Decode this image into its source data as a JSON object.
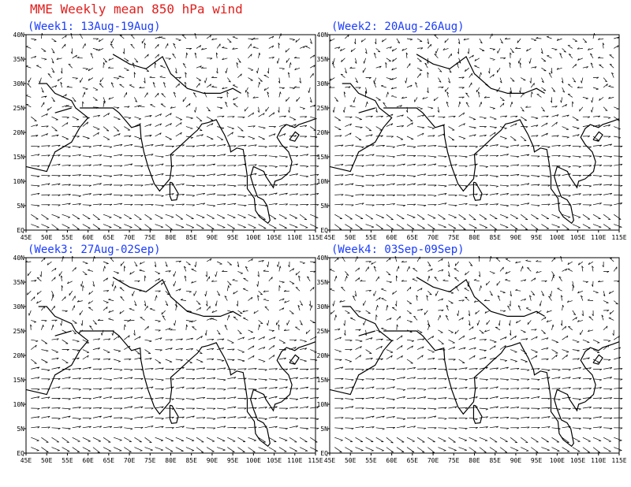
{
  "title": "MME Weekly mean 850 hPa wind",
  "map": {
    "xlim": [
      45,
      115
    ],
    "ylim": [
      0,
      40
    ],
    "xticks": [
      {
        "value": 45,
        "label": "45E"
      },
      {
        "value": 50,
        "label": "50E"
      },
      {
        "value": 55,
        "label": "55E"
      },
      {
        "value": 60,
        "label": "60E"
      },
      {
        "value": 65,
        "label": "65E"
      },
      {
        "value": 70,
        "label": "70E"
      },
      {
        "value": 75,
        "label": "75E"
      },
      {
        "value": 80,
        "label": "80E"
      },
      {
        "value": 85,
        "label": "85E"
      },
      {
        "value": 90,
        "label": "90E"
      },
      {
        "value": 95,
        "label": "95E"
      },
      {
        "value": 100,
        "label": "100E"
      },
      {
        "value": 105,
        "label": "105E"
      },
      {
        "value": 110,
        "label": "110E"
      },
      {
        "value": 115,
        "label": "115E"
      }
    ],
    "yticks": [
      {
        "value": 0,
        "label": "EQ"
      },
      {
        "value": 5,
        "label": "5N"
      },
      {
        "value": 10,
        "label": "10N"
      },
      {
        "value": 15,
        "label": "15N"
      },
      {
        "value": 20,
        "label": "20N"
      },
      {
        "value": 25,
        "label": "25N"
      },
      {
        "value": 30,
        "label": "30N"
      },
      {
        "value": 35,
        "label": "35N"
      },
      {
        "value": 40,
        "label": "40N"
      }
    ]
  },
  "panels": [
    {
      "title": "(Week1: 13Aug-19Aug)"
    },
    {
      "title": "(Week2: 20Aug-26Aug)"
    },
    {
      "title": "(Week3: 27Aug-02Sep)"
    },
    {
      "title": "(Week4: 03Sep-09Sep)"
    }
  ]
}
